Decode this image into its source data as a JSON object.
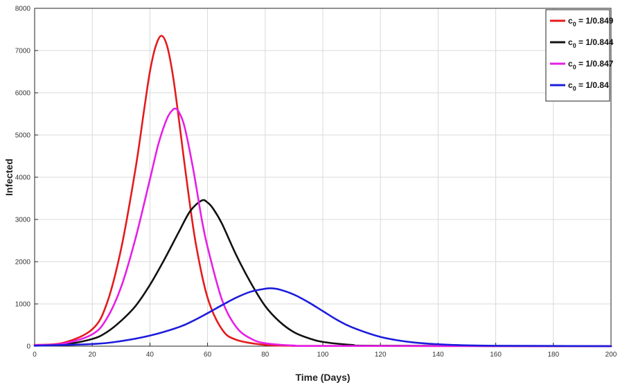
{
  "chart_data": {
    "type": "line",
    "title": "",
    "xlabel": "Time (Days)",
    "ylabel": "Infected",
    "xlim": [
      0,
      200
    ],
    "ylim": [
      0,
      8000
    ],
    "x_ticks": [
      "0",
      "20",
      "40",
      "60",
      "80",
      "100",
      "120",
      "140",
      "160",
      "180",
      "200"
    ],
    "y_ticks": [
      "0",
      "1000",
      "2000",
      "3000",
      "4000",
      "5000",
      "6000",
      "7000",
      "8000"
    ],
    "grid": true,
    "legend_position": "top-right",
    "series": [
      {
        "name_base": "c",
        "name_sub": "0",
        "name_rest": " = 1/0.849",
        "color": "#e41a1c",
        "x": [
          0,
          10,
          20,
          25,
          30,
          35,
          38,
          40,
          42,
          44,
          46,
          48,
          50,
          53,
          56,
          60,
          65,
          70,
          80,
          90,
          100,
          200
        ],
        "y": [
          30,
          80,
          400,
          1000,
          2300,
          4200,
          5600,
          6500,
          7100,
          7350,
          7100,
          6400,
          5400,
          3800,
          2400,
          1150,
          400,
          150,
          30,
          10,
          5,
          0
        ]
      },
      {
        "name_base": "c",
        "name_sub": "0",
        "name_rest": " = 1/0.844",
        "color": "#111111",
        "x": [
          0,
          10,
          20,
          25,
          30,
          35,
          40,
          45,
          50,
          54,
          58,
          60,
          62,
          65,
          70,
          75,
          80,
          85,
          90,
          95,
          100,
          110,
          120,
          200
        ],
        "y": [
          20,
          40,
          170,
          330,
          600,
          950,
          1450,
          2050,
          2700,
          3200,
          3450,
          3400,
          3250,
          2900,
          2150,
          1500,
          950,
          580,
          330,
          190,
          100,
          30,
          10,
          0
        ]
      },
      {
        "name_base": "c",
        "name_sub": "0",
        "name_rest": " = 1/0.847",
        "color": "#e61ee6",
        "x": [
          0,
          10,
          20,
          25,
          30,
          35,
          40,
          43,
          46,
          48,
          49,
          50,
          52,
          55,
          58,
          60,
          65,
          70,
          75,
          80,
          90,
          100,
          200
        ],
        "y": [
          25,
          60,
          280,
          650,
          1400,
          2550,
          3950,
          4800,
          5400,
          5600,
          5620,
          5550,
          5200,
          4200,
          3000,
          2350,
          1100,
          450,
          180,
          70,
          15,
          5,
          0
        ]
      },
      {
        "name_base": "c",
        "name_sub": "0",
        "name_rest": " = 1/0.84",
        "color": "#1c1cdc",
        "x": [
          0,
          20,
          30,
          40,
          50,
          55,
          60,
          65,
          70,
          75,
          80,
          82,
          85,
          90,
          95,
          100,
          105,
          110,
          120,
          130,
          140,
          150,
          160,
          200
        ],
        "y": [
          10,
          50,
          120,
          250,
          450,
          600,
          780,
          970,
          1150,
          1290,
          1360,
          1370,
          1340,
          1220,
          1040,
          830,
          620,
          450,
          220,
          100,
          45,
          20,
          10,
          0
        ]
      }
    ]
  }
}
